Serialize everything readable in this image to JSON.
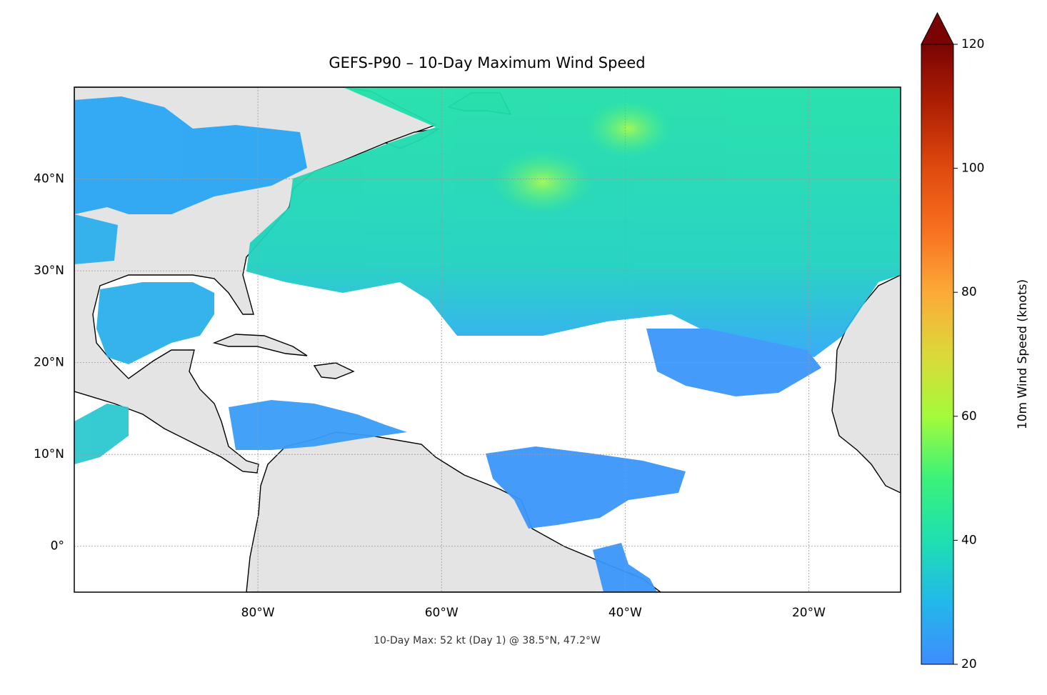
{
  "chart_data": {
    "type": "map",
    "title": "GEFS-P90 – 10-Day Maximum Wind Speed",
    "annotation": "10-Day Max: 52 kt (Day 1) @ 38.5°N, 47.2°W",
    "xlim": [
      -100,
      -10
    ],
    "ylim": [
      -5,
      50
    ],
    "xticks": [
      {
        "value": -80,
        "label": "80°W"
      },
      {
        "value": -60,
        "label": "60°W"
      },
      {
        "value": -40,
        "label": "40°W"
      },
      {
        "value": -20,
        "label": "20°W"
      }
    ],
    "yticks": [
      {
        "value": 0,
        "label": "0°"
      },
      {
        "value": 10,
        "label": "10°N"
      },
      {
        "value": 20,
        "label": "20°N"
      },
      {
        "value": 30,
        "label": "30°N"
      },
      {
        "value": 40,
        "label": "40°N"
      }
    ],
    "grid": true,
    "colorbar": {
      "label": "10m Wind Speed (knots)",
      "lim": [
        20,
        120
      ],
      "ticks": [
        20,
        40,
        60,
        80,
        100,
        120
      ]
    }
  }
}
